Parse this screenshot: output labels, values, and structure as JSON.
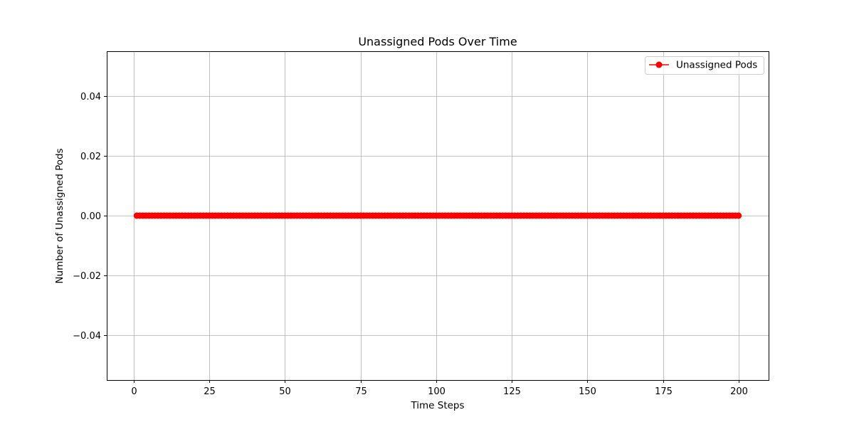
{
  "chart_data": {
    "type": "line",
    "title": "Unassigned Pods Over Time",
    "xlabel": "Time Steps",
    "ylabel": "Number of Unassigned Pods",
    "xlim": [
      -8.95,
      209.95
    ],
    "ylim": [
      -0.055,
      0.055
    ],
    "x_ticks": [
      0,
      25,
      50,
      75,
      100,
      125,
      150,
      175,
      200
    ],
    "x_tick_labels": [
      "0",
      "25",
      "50",
      "75",
      "100",
      "125",
      "150",
      "175",
      "200"
    ],
    "y_ticks": [
      0.04,
      0.02,
      0.0,
      -0.02,
      -0.04
    ],
    "y_tick_labels": [
      "0.04",
      "0.02",
      "0.00",
      "−0.02",
      "−0.04"
    ],
    "grid": true,
    "legend_position": "top-right",
    "series": [
      {
        "name": "Unassigned Pods",
        "color": "#ff0000",
        "marker": "circle",
        "x_start": 1,
        "x_end": 200,
        "x_step": 1,
        "y_constant": 0
      }
    ]
  }
}
